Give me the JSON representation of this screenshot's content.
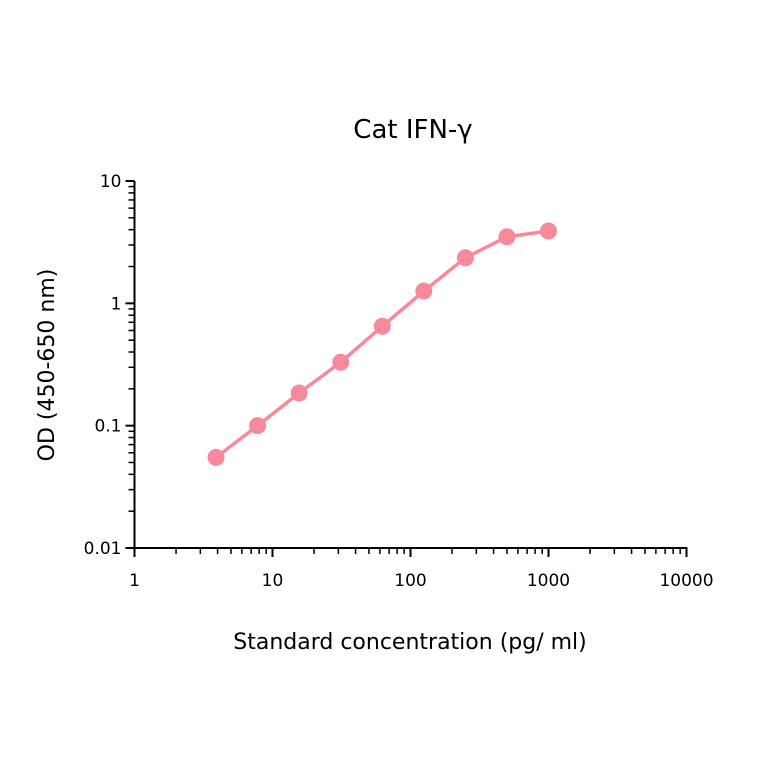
{
  "chart_data": {
    "type": "line",
    "title": "Cat IFN-γ",
    "xlabel": "Standard concentration (pg/ ml)",
    "ylabel": "OD (450-650 nm)",
    "x_scale": "log",
    "y_scale": "log",
    "xlim": [
      1,
      10000
    ],
    "ylim": [
      0.01,
      10
    ],
    "x_ticks": [
      "1",
      "10",
      "100",
      "1000",
      "10000"
    ],
    "y_ticks": [
      "0.01",
      "0.1",
      "1",
      "10"
    ],
    "grid": false,
    "color": "#f7899a",
    "series": [
      {
        "x": [
          3.9,
          7.8,
          15.6,
          31.25,
          62.5,
          125,
          250,
          500,
          1000
        ],
        "y": [
          0.055,
          0.1,
          0.185,
          0.33,
          0.65,
          1.26,
          2.36,
          3.5,
          3.9
        ]
      }
    ]
  }
}
